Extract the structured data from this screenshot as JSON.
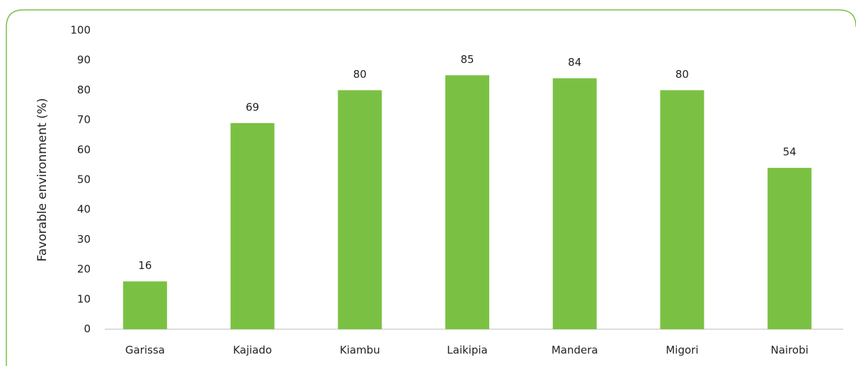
{
  "chart_data": {
    "type": "bar",
    "y_label": "Favorable environment (%)",
    "categories": [
      "Garissa",
      "Kajiado",
      "Kiambu",
      "Laikipia",
      "Mandera",
      "Migori",
      "Nairobi"
    ],
    "values": [
      16,
      69,
      80,
      85,
      84,
      80,
      54
    ],
    "color": "#7ac143",
    "ylim": [
      0,
      100
    ],
    "yticks": [
      0,
      10,
      20,
      30,
      40,
      50,
      60,
      70,
      80,
      90,
      100
    ],
    "grid": false
  }
}
